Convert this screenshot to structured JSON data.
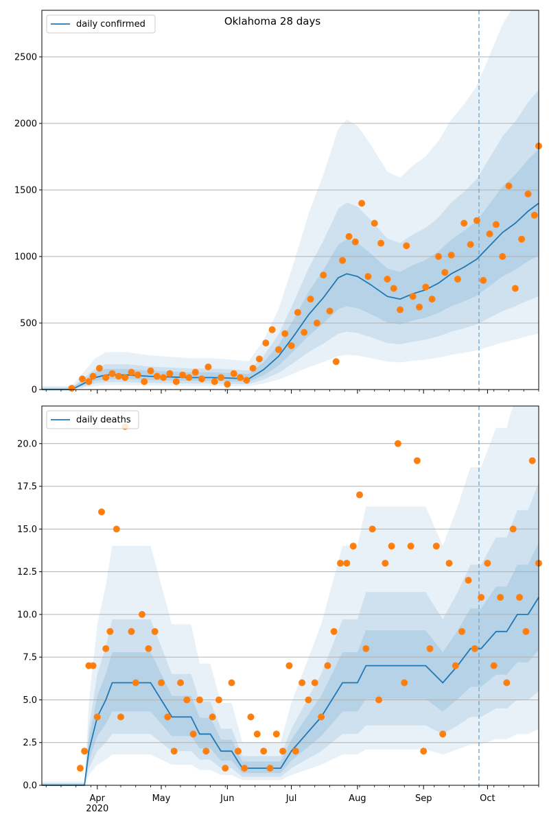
{
  "chart_data": [
    {
      "type": "line",
      "title": "Oklahoma 28 days",
      "legend": "top-left",
      "legend_label": "daily confirmed",
      "x_ticks": [
        "Apr",
        "May",
        "Jun",
        "Jul",
        "Aug",
        "Sep",
        "Oct"
      ],
      "x_year_label": "2020",
      "x_range": [
        "2020-03-06",
        "2020-10-25"
      ],
      "ylim": [
        0,
        2850
      ],
      "y_ticks": [
        0,
        500,
        1000,
        1500,
        2000,
        2500
      ],
      "y_tick_labels": [
        "0",
        "500",
        "1000",
        "1500",
        "2000",
        "2500"
      ],
      "grid": "horizontal",
      "forecast_start": "2020-09-27",
      "series": [
        {
          "name": "daily confirmed",
          "kind": "model median",
          "x": [
            "2020-03-06",
            "2020-03-20",
            "2020-03-25",
            "2020-03-31",
            "2020-04-05",
            "2020-04-15",
            "2020-04-25",
            "2020-05-05",
            "2020-05-15",
            "2020-05-25",
            "2020-06-04",
            "2020-06-11",
            "2020-06-18",
            "2020-06-25",
            "2020-07-02",
            "2020-07-09",
            "2020-07-16",
            "2020-07-23",
            "2020-07-27",
            "2020-08-01",
            "2020-08-07",
            "2020-08-15",
            "2020-08-21",
            "2020-08-27",
            "2020-09-02",
            "2020-09-08",
            "2020-09-14",
            "2020-09-20",
            "2020-09-26",
            "2020-10-02",
            "2020-10-08",
            "2020-10-14",
            "2020-10-20",
            "2020-10-25"
          ],
          "values": [
            0,
            0,
            40,
            90,
            110,
            110,
            100,
            95,
            90,
            90,
            85,
            80,
            150,
            250,
            400,
            560,
            690,
            840,
            870,
            850,
            790,
            700,
            680,
            720,
            750,
            800,
            870,
            920,
            980,
            1080,
            1180,
            1250,
            1340,
            1400
          ]
        },
        {
          "name": "observed",
          "kind": "scatter",
          "x": [
            "2020-03-20",
            "2020-03-25",
            "2020-03-28",
            "2020-03-30",
            "2020-04-02",
            "2020-04-05",
            "2020-04-08",
            "2020-04-11",
            "2020-04-14",
            "2020-04-17",
            "2020-04-20",
            "2020-04-23",
            "2020-04-26",
            "2020-04-29",
            "2020-05-02",
            "2020-05-05",
            "2020-05-08",
            "2020-05-11",
            "2020-05-14",
            "2020-05-17",
            "2020-05-20",
            "2020-05-23",
            "2020-05-26",
            "2020-05-29",
            "2020-06-01",
            "2020-06-04",
            "2020-06-07",
            "2020-06-10",
            "2020-06-13",
            "2020-06-16",
            "2020-06-19",
            "2020-06-22",
            "2020-06-25",
            "2020-06-28",
            "2020-07-01",
            "2020-07-04",
            "2020-07-07",
            "2020-07-10",
            "2020-07-13",
            "2020-07-16",
            "2020-07-19",
            "2020-07-22",
            "2020-07-25",
            "2020-07-28",
            "2020-07-31",
            "2020-08-03",
            "2020-08-06",
            "2020-08-09",
            "2020-08-12",
            "2020-08-15",
            "2020-08-18",
            "2020-08-21",
            "2020-08-24",
            "2020-08-27",
            "2020-08-30",
            "2020-09-02",
            "2020-09-05",
            "2020-09-08",
            "2020-09-11",
            "2020-09-14",
            "2020-09-17",
            "2020-09-20",
            "2020-09-23",
            "2020-09-26",
            "2020-09-29",
            "2020-10-02",
            "2020-10-05",
            "2020-10-08",
            "2020-10-11",
            "2020-10-14",
            "2020-10-17",
            "2020-10-20",
            "2020-10-23",
            "2020-10-25"
          ],
          "values": [
            10,
            80,
            60,
            100,
            160,
            90,
            120,
            100,
            90,
            130,
            110,
            60,
            140,
            100,
            90,
            120,
            60,
            110,
            90,
            130,
            80,
            170,
            60,
            90,
            40,
            120,
            90,
            70,
            160,
            230,
            350,
            450,
            300,
            420,
            330,
            580,
            430,
            680,
            500,
            860,
            590,
            210,
            970,
            1150,
            1110,
            1400,
            850,
            1250,
            1100,
            830,
            760,
            600,
            1080,
            700,
            620,
            770,
            680,
            1000,
            880,
            1010,
            830,
            1250,
            1090,
            1270,
            820,
            1170,
            1240,
            1000,
            1530,
            760,
            1130,
            1470,
            1310,
            1830
          ]
        }
      ]
    },
    {
      "type": "line",
      "title": "",
      "legend": "top-left",
      "legend_label": "daily deaths",
      "x_ticks": [
        "Apr",
        "May",
        "Jun",
        "Jul",
        "Aug",
        "Sep",
        "Oct"
      ],
      "x_year_label": "2020",
      "x_range": [
        "2020-03-06",
        "2020-10-25"
      ],
      "ylim": [
        0,
        22.2
      ],
      "y_ticks": [
        0,
        2.5,
        5,
        7.5,
        10,
        12.5,
        15,
        17.5,
        20
      ],
      "y_tick_labels": [
        "0.0",
        "2.5",
        "5.0",
        "7.5",
        "10.0",
        "12.5",
        "15.0",
        "17.5",
        "20.0"
      ],
      "grid": "horizontal",
      "forecast_start": "2020-09-27",
      "series": [
        {
          "name": "daily deaths",
          "kind": "model median",
          "x": [
            "2020-03-06",
            "2020-03-26",
            "2020-03-28",
            "2020-03-30",
            "2020-04-01",
            "2020-04-05",
            "2020-04-08",
            "2020-04-15",
            "2020-04-26",
            "2020-05-01",
            "2020-05-06",
            "2020-05-15",
            "2020-05-19",
            "2020-05-24",
            "2020-05-29",
            "2020-06-03",
            "2020-06-08",
            "2020-06-16",
            "2020-06-26",
            "2020-07-01",
            "2020-07-08",
            "2020-07-15",
            "2020-07-20",
            "2020-07-25",
            "2020-07-30",
            "2020-08-01",
            "2020-08-05",
            "2020-08-15",
            "2020-08-25",
            "2020-09-02",
            "2020-09-10",
            "2020-09-17",
            "2020-09-23",
            "2020-09-28",
            "2020-10-05",
            "2020-10-10",
            "2020-10-15",
            "2020-10-20",
            "2020-10-25"
          ],
          "values": [
            0,
            0,
            2,
            3,
            4,
            5,
            6,
            6,
            6,
            5,
            4,
            4,
            3,
            3,
            2,
            2,
            1,
            1,
            1,
            2,
            3,
            4,
            5,
            6,
            6,
            6,
            7,
            7,
            7,
            7,
            6,
            7,
            8,
            8,
            9,
            9,
            10,
            10,
            11
          ]
        },
        {
          "name": "observed",
          "kind": "scatter",
          "x": [
            "2020-03-24",
            "2020-03-26",
            "2020-03-28",
            "2020-03-30",
            "2020-04-01",
            "2020-04-03",
            "2020-04-05",
            "2020-04-07",
            "2020-04-10",
            "2020-04-12",
            "2020-04-14",
            "2020-04-17",
            "2020-04-19",
            "2020-04-22",
            "2020-04-25",
            "2020-04-28",
            "2020-05-01",
            "2020-05-04",
            "2020-05-07",
            "2020-05-10",
            "2020-05-13",
            "2020-05-16",
            "2020-05-19",
            "2020-05-22",
            "2020-05-25",
            "2020-05-28",
            "2020-05-31",
            "2020-06-03",
            "2020-06-06",
            "2020-06-09",
            "2020-06-12",
            "2020-06-15",
            "2020-06-18",
            "2020-06-21",
            "2020-06-24",
            "2020-06-27",
            "2020-06-30",
            "2020-07-03",
            "2020-07-06",
            "2020-07-09",
            "2020-07-12",
            "2020-07-15",
            "2020-07-18",
            "2020-07-21",
            "2020-07-24",
            "2020-07-27",
            "2020-07-30",
            "2020-08-02",
            "2020-08-05",
            "2020-08-08",
            "2020-08-11",
            "2020-08-14",
            "2020-08-17",
            "2020-08-20",
            "2020-08-23",
            "2020-08-26",
            "2020-08-29",
            "2020-09-01",
            "2020-09-04",
            "2020-09-07",
            "2020-09-10",
            "2020-09-13",
            "2020-09-16",
            "2020-09-19",
            "2020-09-22",
            "2020-09-25",
            "2020-09-28",
            "2020-10-01",
            "2020-10-04",
            "2020-10-07",
            "2020-10-10",
            "2020-10-13",
            "2020-10-16",
            "2020-10-19",
            "2020-10-22",
            "2020-10-25"
          ],
          "values": [
            1,
            2,
            7,
            7,
            4,
            16,
            8,
            9,
            15,
            4,
            21,
            9,
            6,
            10,
            8,
            9,
            6,
            4,
            2,
            6,
            5,
            3,
            5,
            2,
            4,
            5,
            1,
            6,
            2,
            1,
            4,
            3,
            2,
            1,
            3,
            2,
            7,
            2,
            6,
            5,
            6,
            4,
            7,
            9,
            13,
            13,
            14,
            17,
            8,
            15,
            5,
            13,
            14,
            20,
            6,
            14,
            19,
            2,
            8,
            14,
            3,
            13,
            7,
            9,
            12,
            8,
            11,
            13,
            7,
            11,
            6,
            15,
            11,
            9,
            19,
            13
          ]
        }
      ]
    }
  ]
}
